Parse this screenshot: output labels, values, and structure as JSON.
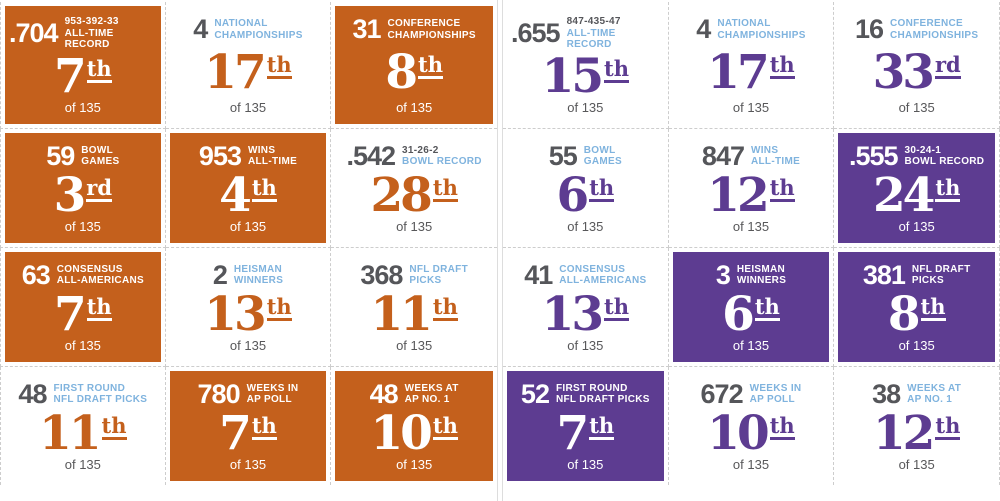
{
  "board": {
    "of_label": "of 135"
  },
  "theme": {
    "team_a_accent": "#C4601C",
    "team_b_accent": "#5D3C91",
    "label_blue": "#7FB3DE",
    "value_gray": "#55565A",
    "grid_line": "#CDCDCD",
    "divider_line": "#DDDDDD"
  },
  "halves": [
    {
      "id": "team-a",
      "accent": "#C4601C",
      "cards": [
        {
          "value": ".704",
          "label_top": "953-392-33",
          "label_top_muted": true,
          "label_bottom": "ALL-TIME RECORD",
          "rank": "7",
          "suffix": "th",
          "filled": true
        },
        {
          "value": "4",
          "label_top": "NATIONAL",
          "label_top_muted": false,
          "label_bottom": "CHAMPIONSHIPS",
          "rank": "17",
          "suffix": "th",
          "filled": false
        },
        {
          "value": "31",
          "label_top": "CONFERENCE",
          "label_top_muted": false,
          "label_bottom": "CHAMPIONSHIPS",
          "rank": "8",
          "suffix": "th",
          "filled": true
        },
        {
          "value": "59",
          "label_top": "BOWL",
          "label_top_muted": false,
          "label_bottom": "GAMES",
          "rank": "3",
          "suffix": "rd",
          "filled": true
        },
        {
          "value": "953",
          "label_top": "WINS",
          "label_top_muted": false,
          "label_bottom": "ALL-TIME",
          "rank": "4",
          "suffix": "th",
          "filled": true
        },
        {
          "value": ".542",
          "label_top": "31-26-2",
          "label_top_muted": true,
          "label_bottom": "BOWL RECORD",
          "rank": "28",
          "suffix": "th",
          "filled": false
        },
        {
          "value": "63",
          "label_top": "CONSENSUS",
          "label_top_muted": false,
          "label_bottom": "ALL-AMERICANS",
          "rank": "7",
          "suffix": "th",
          "filled": true
        },
        {
          "value": "2",
          "label_top": "HEISMAN",
          "label_top_muted": false,
          "label_bottom": "WINNERS",
          "rank": "13",
          "suffix": "th",
          "filled": false
        },
        {
          "value": "368",
          "label_top": "NFL DRAFT",
          "label_top_muted": false,
          "label_bottom": "PICKS",
          "rank": "11",
          "suffix": "th",
          "filled": false
        },
        {
          "value": "48",
          "label_top": "FIRST ROUND",
          "label_top_muted": false,
          "label_bottom": "NFL DRAFT PICKS",
          "rank": "11",
          "suffix": "th",
          "filled": false
        },
        {
          "value": "780",
          "label_top": "WEEKS IN",
          "label_top_muted": false,
          "label_bottom": "AP POLL",
          "rank": "7",
          "suffix": "th",
          "filled": true
        },
        {
          "value": "48",
          "label_top": "WEEKS AT",
          "label_top_muted": false,
          "label_bottom": "AP NO. 1",
          "rank": "10",
          "suffix": "th",
          "filled": true
        }
      ]
    },
    {
      "id": "team-b",
      "accent": "#5D3C91",
      "cards": [
        {
          "value": ".655",
          "label_top": "847-435-47",
          "label_top_muted": true,
          "label_bottom": "ALL-TIME RECORD",
          "rank": "15",
          "suffix": "th",
          "filled": false
        },
        {
          "value": "4",
          "label_top": "NATIONAL",
          "label_top_muted": false,
          "label_bottom": "CHAMPIONSHIPS",
          "rank": "17",
          "suffix": "th",
          "filled": false
        },
        {
          "value": "16",
          "label_top": "CONFERENCE",
          "label_top_muted": false,
          "label_bottom": "CHAMPIONSHIPS",
          "rank": "33",
          "suffix": "rd",
          "filled": false
        },
        {
          "value": "55",
          "label_top": "BOWL",
          "label_top_muted": false,
          "label_bottom": "GAMES",
          "rank": "6",
          "suffix": "th",
          "filled": false
        },
        {
          "value": "847",
          "label_top": "WINS",
          "label_top_muted": false,
          "label_bottom": "ALL-TIME",
          "rank": "12",
          "suffix": "th",
          "filled": false
        },
        {
          "value": ".555",
          "label_top": "30-24-1",
          "label_top_muted": true,
          "label_bottom": "BOWL RECORD",
          "rank": "24",
          "suffix": "th",
          "filled": true
        },
        {
          "value": "41",
          "label_top": "CONSENSUS",
          "label_top_muted": false,
          "label_bottom": "ALL-AMERICANS",
          "rank": "13",
          "suffix": "th",
          "filled": false
        },
        {
          "value": "3",
          "label_top": "HEISMAN",
          "label_top_muted": false,
          "label_bottom": "WINNERS",
          "rank": "6",
          "suffix": "th",
          "filled": true
        },
        {
          "value": "381",
          "label_top": "NFL DRAFT",
          "label_top_muted": false,
          "label_bottom": "PICKS",
          "rank": "8",
          "suffix": "th",
          "filled": true
        },
        {
          "value": "52",
          "label_top": "FIRST ROUND",
          "label_top_muted": false,
          "label_bottom": "NFL DRAFT PICKS",
          "rank": "7",
          "suffix": "th",
          "filled": true
        },
        {
          "value": "672",
          "label_top": "WEEKS IN",
          "label_top_muted": false,
          "label_bottom": "AP POLL",
          "rank": "10",
          "suffix": "th",
          "filled": false
        },
        {
          "value": "38",
          "label_top": "WEEKS AT",
          "label_top_muted": false,
          "label_bottom": "AP NO. 1",
          "rank": "12",
          "suffix": "th",
          "filled": false
        }
      ]
    }
  ],
  "chart_data": {
    "type": "table",
    "categories": [
      "All-Time Record",
      "National Championships",
      "Conference Championships",
      "Bowl Games",
      "Wins All-Time",
      "Bowl Record",
      "Consensus All-Americans",
      "Heisman Winners",
      "NFL Draft Picks",
      "First Round NFL Draft Picks",
      "Weeks in AP Poll",
      "Weeks at AP No. 1"
    ],
    "series": [
      {
        "name": "left-team-orange",
        "values": [
          ".704 (953-392-33)",
          4,
          31,
          59,
          953,
          ".542 (31-26-2)",
          63,
          2,
          368,
          48,
          780,
          48
        ],
        "ranks": [
          "7th",
          "17th",
          "8th",
          "3rd",
          "4th",
          "28th",
          "7th",
          "13th",
          "11th",
          "11th",
          "7th",
          "10th"
        ],
        "highlighted": [
          true,
          false,
          true,
          true,
          true,
          false,
          true,
          false,
          false,
          false,
          true,
          true
        ]
      },
      {
        "name": "right-team-purple",
        "values": [
          ".655 (847-435-47)",
          4,
          16,
          55,
          847,
          ".555 (30-24-1)",
          41,
          3,
          381,
          52,
          672,
          38
        ],
        "ranks": [
          "15th",
          "17th",
          "33rd",
          "6th",
          "12th",
          "24th",
          "13th",
          "6th",
          "8th",
          "7th",
          "10th",
          "12th"
        ],
        "highlighted": [
          false,
          false,
          false,
          false,
          false,
          true,
          false,
          true,
          true,
          true,
          false,
          false
        ]
      }
    ],
    "rank_denominator": "of 135",
    "layout": "two side-by-side 3x4 card grids; highlighted cells filled with team color"
  }
}
